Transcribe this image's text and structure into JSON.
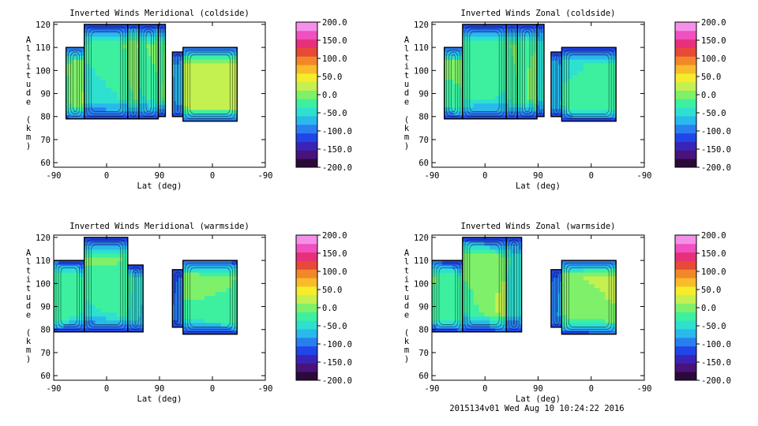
{
  "colormap": [
    "#2b0a3a",
    "#48137a",
    "#3a24b8",
    "#2046e8",
    "#2a7ff0",
    "#29b9ea",
    "#2ee0d0",
    "#3df0a0",
    "#7ff06a",
    "#c4f050",
    "#f6ec2c",
    "#f8bb2a",
    "#f2872a",
    "#e84a38",
    "#e8307a",
    "#f050c0",
    "#f590e8"
  ],
  "colorbar_ticks": [
    "200.0",
    "150.0",
    "100.0",
    "50.0",
    "0.0",
    "-50.0",
    "-100.0",
    "-150.0",
    "-200.0"
  ],
  "footer": "2015134v01 Wed Aug 10 10:24:22 2016",
  "chart_data": [
    {
      "type": "heatmap",
      "title": "Inverted Winds Meridional (coldside)",
      "xlabel": "Lat (deg)",
      "ylabel": "Altitude (km)",
      "x_ticks": [
        "-90",
        "0",
        "90",
        "0",
        "-90"
      ],
      "y_ticks": [
        120,
        110,
        100,
        90,
        80,
        70,
        60
      ],
      "ylim": [
        58,
        121
      ],
      "zlim": [
        -200,
        200
      ],
      "bands": [
        {
          "x": [
            -69,
            -38
          ],
          "y": [
            79,
            110
          ],
          "z": [
            -20,
            20,
            -10,
            5
          ]
        },
        {
          "x": [
            -38,
            36
          ],
          "y": [
            79,
            120
          ],
          "z": [
            -60,
            -40,
            -20,
            0
          ]
        },
        {
          "x": [
            36,
            55
          ],
          "y": [
            79,
            120
          ],
          "z": [
            -30,
            -10,
            10,
            20
          ]
        },
        {
          "x": [
            55,
            88
          ],
          "y": [
            79,
            120
          ],
          "z": [
            -50,
            -30,
            -10,
            10
          ]
        },
        {
          "x": [
            88,
            100
          ],
          "y": [
            80,
            120
          ],
          "z": [
            -20,
            0,
            -30,
            -10
          ]
        },
        {
          "x": [
            112,
            130
          ],
          "y": [
            80,
            108
          ],
          "z": [
            -90,
            -70,
            -80,
            -60
          ]
        },
        {
          "x": [
            130,
            222
          ],
          "y": [
            78,
            110
          ],
          "z": [
            30,
            40,
            20,
            10
          ]
        }
      ]
    },
    {
      "type": "heatmap",
      "title": "Inverted Winds Zonal (coldside)",
      "xlabel": "Lat (deg)",
      "ylabel": "Altitude (km)",
      "x_ticks": [
        "-90",
        "0",
        "90",
        "0",
        "-90"
      ],
      "y_ticks": [
        120,
        110,
        100,
        90,
        80,
        70,
        60
      ],
      "ylim": [
        58,
        121
      ],
      "zlim": [
        -200,
        200
      ],
      "bands": [
        {
          "x": [
            -69,
            -38
          ],
          "y": [
            79,
            110
          ],
          "z": [
            -40,
            -20,
            10,
            0
          ]
        },
        {
          "x": [
            -38,
            36
          ],
          "y": [
            79,
            120
          ],
          "z": [
            -30,
            -50,
            -20,
            0
          ]
        },
        {
          "x": [
            36,
            55
          ],
          "y": [
            79,
            120
          ],
          "z": [
            -40,
            -20,
            -10,
            0
          ]
        },
        {
          "x": [
            55,
            88
          ],
          "y": [
            79,
            120
          ],
          "z": [
            -30,
            10,
            -10,
            -20
          ]
        },
        {
          "x": [
            88,
            100
          ],
          "y": [
            80,
            120
          ],
          "z": [
            -60,
            -30,
            -50,
            -40
          ]
        },
        {
          "x": [
            112,
            130
          ],
          "y": [
            80,
            108
          ],
          "z": [
            -70,
            -50,
            -60,
            -80
          ]
        },
        {
          "x": [
            130,
            222
          ],
          "y": [
            78,
            110
          ],
          "z": [
            -20,
            -10,
            -50,
            -30
          ]
        }
      ]
    },
    {
      "type": "heatmap",
      "title": "Inverted Winds Meridional (warmside)",
      "xlabel": "Lat (deg)",
      "ylabel": "Altitude (km)",
      "x_ticks": [
        "-90",
        "0",
        "90",
        "0",
        "-90"
      ],
      "y_ticks": [
        120,
        110,
        100,
        90,
        80,
        70,
        60
      ],
      "ylim": [
        58,
        121
      ],
      "zlim": [
        -200,
        200
      ],
      "bands": [
        {
          "x": [
            -90,
            -38
          ],
          "y": [
            79,
            110
          ],
          "z": [
            -20,
            -40,
            -10,
            -30
          ]
        },
        {
          "x": [
            -38,
            36
          ],
          "y": [
            79,
            120
          ],
          "z": [
            -60,
            -20,
            10,
            -10
          ]
        },
        {
          "x": [
            36,
            62
          ],
          "y": [
            79,
            108
          ],
          "z": [
            -40,
            -70,
            -20,
            -50
          ]
        },
        {
          "x": [
            112,
            130
          ],
          "y": [
            81,
            106
          ],
          "z": [
            -100,
            -80,
            -120,
            -90
          ]
        },
        {
          "x": [
            130,
            222
          ],
          "y": [
            78,
            110
          ],
          "z": [
            -40,
            -20,
            20,
            -10
          ]
        }
      ]
    },
    {
      "type": "heatmap",
      "title": "Inverted Winds Zonal (warmside)",
      "xlabel": "Lat (deg)",
      "ylabel": "Altitude (km)",
      "x_ticks": [
        "-90",
        "0",
        "90",
        "0",
        "-90"
      ],
      "y_ticks": [
        120,
        110,
        100,
        90,
        80,
        70,
        60
      ],
      "ylim": [
        58,
        121
      ],
      "zlim": [
        -200,
        200
      ],
      "bands": [
        {
          "x": [
            -90,
            -38
          ],
          "y": [
            79,
            110
          ],
          "z": [
            -30,
            -10,
            0,
            -40
          ]
        },
        {
          "x": [
            -38,
            36
          ],
          "y": [
            79,
            120
          ],
          "z": [
            -50,
            40,
            20,
            -10
          ]
        },
        {
          "x": [
            36,
            62
          ],
          "y": [
            79,
            120
          ],
          "z": [
            -60,
            -40,
            -20,
            -50
          ]
        },
        {
          "x": [
            112,
            130
          ],
          "y": [
            81,
            106
          ],
          "z": [
            -90,
            -70,
            -110,
            -80
          ]
        },
        {
          "x": [
            130,
            222
          ],
          "y": [
            78,
            110
          ],
          "z": [
            -20,
            0,
            10,
            30
          ]
        }
      ]
    }
  ]
}
